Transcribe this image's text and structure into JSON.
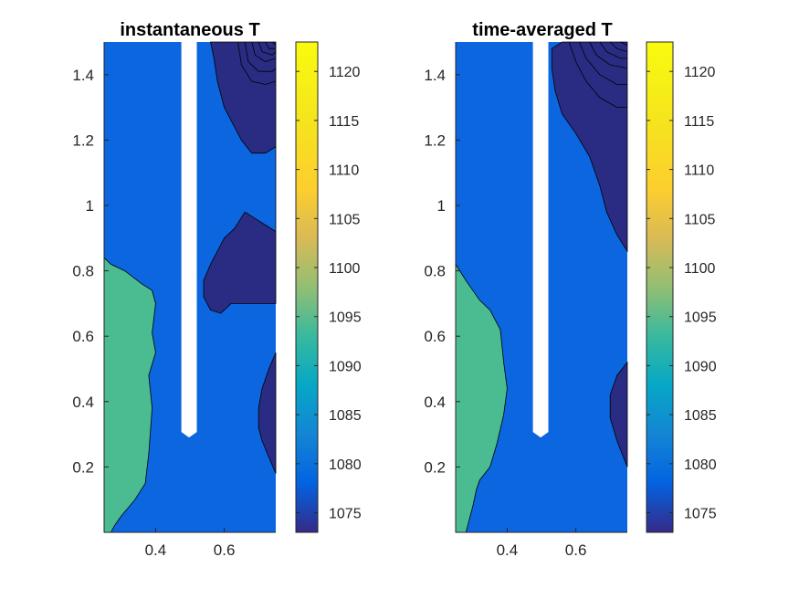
{
  "colors": {
    "c1073": "#2a2c83",
    "c1078": "#0b66e0",
    "c1101": "#4bbb91",
    "rod": "#ffffff",
    "contour": "#000000"
  },
  "chart_data": [
    {
      "type": "contour",
      "title": "instantaneous T",
      "xlim": [
        0.25,
        0.75
      ],
      "ylim": [
        0,
        1.5
      ],
      "xticks": [
        0.4,
        0.6
      ],
      "xtick_labels": [
        "0.4",
        "0.6"
      ],
      "yticks": [
        0.2,
        0.4,
        0.6,
        0.8,
        1.0,
        1.2,
        1.4
      ],
      "ytick_labels": [
        "0.2",
        "0.4",
        "0.6",
        "0.8",
        "1",
        "1.2",
        "1.4"
      ],
      "rod": {
        "x_left": 0.475,
        "x_right": 0.52,
        "y_bottom": 0.29
      },
      "regions": [
        {
          "level": 1078,
          "color_key": "c1078",
          "points": [
            [
              0.25,
              0
            ],
            [
              0.75,
              0
            ],
            [
              0.75,
              1.5
            ],
            [
              0.25,
              1.5
            ]
          ]
        },
        {
          "level": 1101,
          "color_key": "c1101",
          "points": [
            [
              0.25,
              0
            ],
            [
              0.25,
              0.84
            ],
            [
              0.27,
              0.82
            ],
            [
              0.31,
              0.8
            ],
            [
              0.36,
              0.76
            ],
            [
              0.39,
              0.74
            ],
            [
              0.4,
              0.7
            ],
            [
              0.39,
              0.61
            ],
            [
              0.4,
              0.55
            ],
            [
              0.38,
              0.48
            ],
            [
              0.39,
              0.38
            ],
            [
              0.38,
              0.24
            ],
            [
              0.37,
              0.15
            ],
            [
              0.34,
              0.1
            ],
            [
              0.3,
              0.05
            ],
            [
              0.28,
              0.02
            ],
            [
              0.27,
              0
            ]
          ]
        },
        {
          "level": 1073,
          "color_key": "c1073",
          "points": [
            [
              0.56,
              1.5
            ],
            [
              0.75,
              1.5
            ],
            [
              0.75,
              0.92
            ],
            [
              0.72,
              0.94
            ],
            [
              0.69,
              0.96
            ],
            [
              0.66,
              0.98
            ],
            [
              0.63,
              0.93
            ],
            [
              0.6,
              0.9
            ],
            [
              0.58,
              0.86
            ],
            [
              0.56,
              0.82
            ],
            [
              0.54,
              0.77
            ],
            [
              0.54,
              0.72
            ],
            [
              0.56,
              0.68
            ],
            [
              0.59,
              0.67
            ],
            [
              0.62,
              0.7
            ],
            [
              0.66,
              0.7
            ],
            [
              0.7,
              0.7
            ],
            [
              0.75,
              0.7
            ],
            [
              0.75,
              0.82
            ],
            [
              0.75,
              1.18
            ],
            [
              0.72,
              1.16
            ],
            [
              0.68,
              1.16
            ],
            [
              0.65,
              1.2
            ],
            [
              0.62,
              1.26
            ],
            [
              0.6,
              1.3
            ],
            [
              0.58,
              1.38
            ],
            [
              0.57,
              1.45
            ]
          ]
        },
        {
          "level": 1073,
          "color_key": "c1073",
          "points": [
            [
              0.75,
              0.55
            ],
            [
              0.73,
              0.5
            ],
            [
              0.71,
              0.44
            ],
            [
              0.7,
              0.38
            ],
            [
              0.7,
              0.32
            ],
            [
              0.71,
              0.28
            ],
            [
              0.73,
              0.23
            ],
            [
              0.75,
              0.18
            ]
          ]
        }
      ],
      "contours": [
        [
          [
            0.64,
            1.5
          ],
          [
            0.65,
            1.43
          ],
          [
            0.68,
            1.38
          ],
          [
            0.72,
            1.37
          ],
          [
            0.75,
            1.38
          ]
        ],
        [
          [
            0.66,
            1.5
          ],
          [
            0.67,
            1.44
          ],
          [
            0.7,
            1.41
          ],
          [
            0.74,
            1.41
          ],
          [
            0.75,
            1.42
          ]
        ],
        [
          [
            0.68,
            1.5
          ],
          [
            0.69,
            1.46
          ],
          [
            0.72,
            1.44
          ],
          [
            0.75,
            1.45
          ]
        ],
        [
          [
            0.7,
            1.5
          ],
          [
            0.71,
            1.47
          ],
          [
            0.74,
            1.46
          ],
          [
            0.75,
            1.47
          ]
        ],
        [
          [
            0.72,
            1.5
          ],
          [
            0.73,
            1.48
          ],
          [
            0.75,
            1.48
          ]
        ],
        [
          [
            0.74,
            1.5
          ],
          [
            0.75,
            1.49
          ]
        ]
      ]
    },
    {
      "type": "contour",
      "title": "time-averaged T",
      "xlim": [
        0.25,
        0.75
      ],
      "ylim": [
        0,
        1.5
      ],
      "xticks": [
        0.4,
        0.6
      ],
      "xtick_labels": [
        "0.4",
        "0.6"
      ],
      "yticks": [
        0.2,
        0.4,
        0.6,
        0.8,
        1.0,
        1.2,
        1.4
      ],
      "ytick_labels": [
        "0.2",
        "0.4",
        "0.6",
        "0.8",
        "1",
        "1.2",
        "1.4"
      ],
      "rod": {
        "x_left": 0.475,
        "x_right": 0.52,
        "y_bottom": 0.29
      },
      "regions": [
        {
          "level": 1078,
          "color_key": "c1078",
          "points": [
            [
              0.25,
              0
            ],
            [
              0.75,
              0
            ],
            [
              0.75,
              1.5
            ],
            [
              0.25,
              1.5
            ]
          ]
        },
        {
          "level": 1101,
          "color_key": "c1101",
          "points": [
            [
              0.25,
              0
            ],
            [
              0.25,
              0.82
            ],
            [
              0.28,
              0.77
            ],
            [
              0.32,
              0.71
            ],
            [
              0.35,
              0.68
            ],
            [
              0.38,
              0.62
            ],
            [
              0.39,
              0.52
            ],
            [
              0.4,
              0.44
            ],
            [
              0.39,
              0.36
            ],
            [
              0.37,
              0.27
            ],
            [
              0.35,
              0.2
            ],
            [
              0.32,
              0.16
            ],
            [
              0.31,
              0.13
            ],
            [
              0.3,
              0.08
            ],
            [
              0.29,
              0.04
            ],
            [
              0.28,
              0
            ]
          ]
        },
        {
          "level": 1073,
          "color_key": "c1073",
          "points": [
            [
              0.56,
              1.5
            ],
            [
              0.75,
              1.5
            ],
            [
              0.75,
              0.86
            ],
            [
              0.72,
              0.91
            ],
            [
              0.69,
              0.98
            ],
            [
              0.67,
              1.06
            ],
            [
              0.64,
              1.15
            ],
            [
              0.6,
              1.22
            ],
            [
              0.56,
              1.28
            ],
            [
              0.54,
              1.35
            ],
            [
              0.53,
              1.42
            ],
            [
              0.53,
              1.48
            ]
          ]
        },
        {
          "level": 1073,
          "color_key": "c1073",
          "points": [
            [
              0.75,
              0.52
            ],
            [
              0.72,
              0.48
            ],
            [
              0.7,
              0.42
            ],
            [
              0.7,
              0.35
            ],
            [
              0.72,
              0.28
            ],
            [
              0.75,
              0.2
            ]
          ]
        }
      ],
      "contours": [
        [
          [
            0.58,
            1.5
          ],
          [
            0.6,
            1.44
          ],
          [
            0.63,
            1.38
          ],
          [
            0.67,
            1.33
          ],
          [
            0.72,
            1.3
          ],
          [
            0.75,
            1.3
          ]
        ],
        [
          [
            0.61,
            1.5
          ],
          [
            0.63,
            1.45
          ],
          [
            0.67,
            1.4
          ],
          [
            0.72,
            1.37
          ],
          [
            0.75,
            1.37
          ]
        ],
        [
          [
            0.64,
            1.5
          ],
          [
            0.66,
            1.46
          ],
          [
            0.7,
            1.43
          ],
          [
            0.75,
            1.42
          ]
        ],
        [
          [
            0.67,
            1.5
          ],
          [
            0.69,
            1.47
          ],
          [
            0.73,
            1.45
          ],
          [
            0.75,
            1.45
          ]
        ],
        [
          [
            0.7,
            1.5
          ],
          [
            0.72,
            1.48
          ],
          [
            0.75,
            1.47
          ]
        ],
        [
          [
            0.73,
            1.5
          ],
          [
            0.75,
            1.49
          ]
        ]
      ]
    }
  ],
  "colorbars": [
    {
      "clim": [
        1073,
        1123
      ],
      "ticks": [
        1075,
        1080,
        1085,
        1090,
        1095,
        1100,
        1105,
        1110,
        1115,
        1120
      ],
      "tick_labels": [
        "1075",
        "1080",
        "1085",
        "1090",
        "1095",
        "1100",
        "1105",
        "1110",
        "1115",
        "1120"
      ],
      "colormap": "parula"
    },
    {
      "clim": [
        1073,
        1123
      ],
      "ticks": [
        1075,
        1080,
        1085,
        1090,
        1095,
        1100,
        1105,
        1110,
        1115,
        1120
      ],
      "tick_labels": [
        "1075",
        "1080",
        "1085",
        "1090",
        "1095",
        "1100",
        "1105",
        "1110",
        "1115",
        "1120"
      ],
      "colormap": "parula"
    }
  ]
}
